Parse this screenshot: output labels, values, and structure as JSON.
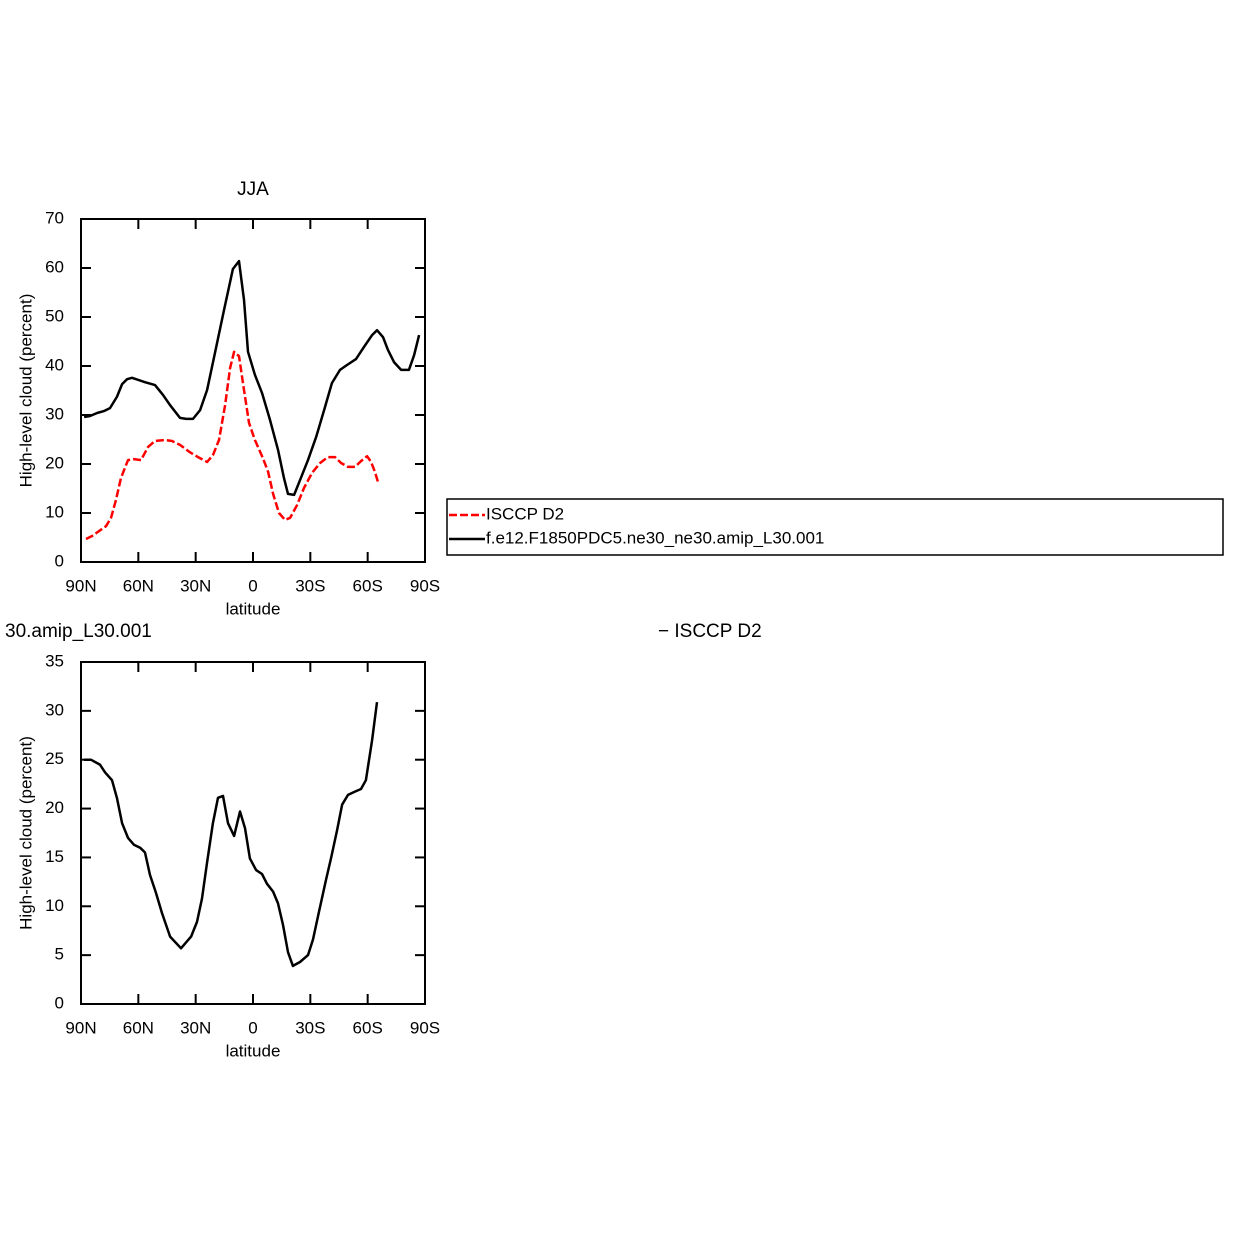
{
  "chart_data": [
    {
      "type": "line",
      "title": "JJA",
      "xlabel": "latitude",
      "ylabel": "High-level cloud (percent)",
      "xlim": [
        90,
        -90
      ],
      "xticks": [
        {
          "value": 90,
          "label": "90N"
        },
        {
          "value": 60,
          "label": "60N"
        },
        {
          "value": 30,
          "label": "30N"
        },
        0,
        {
          "value": -30,
          "label": "30S"
        },
        {
          "value": -60,
          "label": "60S"
        },
        {
          "value": -90,
          "label": "90S"
        }
      ],
      "ylim": [
        0,
        70
      ],
      "yticks": [
        0,
        10,
        20,
        30,
        40,
        50,
        60,
        70
      ],
      "legend": "right",
      "series": [
        {
          "name": "ISCCP D2",
          "color": "#ff0000",
          "dash": true,
          "x": [
            87.4,
            84.2,
            80.6,
            76.9,
            74.3,
            71.7,
            69.1,
            65.4,
            62.3,
            58.6,
            54.9,
            51.3,
            46,
            42.4,
            38.2,
            33,
            28.8,
            24,
            21,
            17.8,
            14.6,
            12,
            9.9,
            7.3,
            4.7,
            2.1,
            -1,
            -5.2,
            -7.9,
            -10.5,
            -13.6,
            -16.8,
            -19.4,
            -23,
            -26.7,
            -30.9,
            -35.1,
            -39.2,
            -42.9,
            -46.1,
            -49.7,
            -53.4,
            -56.5,
            -59.7,
            -61.8,
            -63.8,
            -65.4
          ],
          "values": [
            4.7,
            5.3,
            6.3,
            7.3,
            9,
            12.7,
            17.1,
            20.8,
            21,
            20.8,
            23.5,
            24.7,
            24.9,
            24.7,
            23.9,
            22.4,
            21.4,
            20.4,
            21.8,
            24.9,
            32,
            39.6,
            42.9,
            42,
            35.1,
            28.4,
            24.9,
            21.2,
            18.4,
            13.9,
            10,
            8.6,
            9,
            11.6,
            15.1,
            18.2,
            20.2,
            21.4,
            21.4,
            20.2,
            19.4,
            19.4,
            20.6,
            21.6,
            20.4,
            18.4,
            16.3
          ]
        },
        {
          "name": "f.e12.F1850PDC5.ne30_ne30.amip_L30.001",
          "color": "#000000",
          "dash": false,
          "x": [
            88.4,
            85.3,
            81.6,
            78,
            74.8,
            71.2,
            68.5,
            65.9,
            63.3,
            56.5,
            51.3,
            47.1,
            43.4,
            38.2,
            35,
            31.4,
            27.7,
            24,
            19.9,
            15.2,
            10.5,
            7.3,
            4.7,
            2.6,
            -1,
            -4.7,
            -8.9,
            -13.1,
            -16.2,
            -18.3,
            -21.5,
            -24.6,
            -28.8,
            -33,
            -37.2,
            -41.3,
            -45.5,
            -49.2,
            -53.9,
            -58.1,
            -62.3,
            -64.9,
            -68,
            -70.6,
            -73.8,
            -77.5,
            -81.6,
            -84.3,
            -86.9
          ],
          "values": [
            29.6,
            29.8,
            30.4,
            30.8,
            31.4,
            33.7,
            36.3,
            37.3,
            37.6,
            36.7,
            36.1,
            34.1,
            32,
            29.4,
            29.2,
            29.2,
            31,
            35.1,
            42.7,
            51.4,
            59.8,
            61.4,
            53.5,
            42.9,
            38.2,
            34.5,
            29,
            22.9,
            17.1,
            13.9,
            13.7,
            16.7,
            20.8,
            25.5,
            31,
            36.5,
            39.2,
            40.2,
            41.4,
            43.9,
            46.3,
            47.3,
            45.9,
            43.3,
            40.8,
            39.2,
            39.2,
            42.2,
            46.3
          ]
        }
      ]
    },
    {
      "type": "line",
      "title": "30.amip_L30.001",
      "title_right": "− ISCCP D2",
      "xlabel": "latitude",
      "ylabel": "High-level cloud (percent)",
      "xlim": [
        90,
        -90
      ],
      "xticks": [
        {
          "value": 90,
          "label": "90N"
        },
        {
          "value": 60,
          "label": "60N"
        },
        {
          "value": 30,
          "label": "30N"
        },
        0,
        {
          "value": -30,
          "label": "30S"
        },
        {
          "value": -60,
          "label": "60S"
        },
        {
          "value": -90,
          "label": "90S"
        }
      ],
      "ylim": [
        0,
        35
      ],
      "yticks": [
        0,
        5,
        10,
        15,
        20,
        25,
        30,
        35
      ],
      "series": [
        {
          "color": "#000000",
          "dash": false,
          "x": [
            88.4,
            84.8,
            80.1,
            77.4,
            73.8,
            71.2,
            68.5,
            65.4,
            62.3,
            59.1,
            56.5,
            53.9,
            50.8,
            47.6,
            43.4,
            37.7,
            32.4,
            29.3,
            26.7,
            24,
            21,
            18.3,
            15.7,
            13.1,
            9.9,
            6.8,
            4.2,
            1.6,
            -1.6,
            -4.7,
            -7.3,
            -10.5,
            -13.1,
            -15.7,
            -18.3,
            -20.9,
            -24.6,
            -28.8,
            -31.4,
            -34.5,
            -38.2,
            -40.8,
            -44,
            -46.6,
            -49.7,
            -52.9,
            -56.5,
            -59.1,
            -62.3,
            -64.9
          ],
          "values": [
            25,
            25,
            24.5,
            23.7,
            22.9,
            21.1,
            18.5,
            17,
            16.3,
            16,
            15.5,
            13.2,
            11.4,
            9.3,
            6.9,
            5.7,
            6.9,
            8.4,
            10.8,
            14.5,
            18.5,
            21.1,
            21.3,
            18.5,
            17.2,
            19.7,
            18,
            14.9,
            13.7,
            13.3,
            12.3,
            11.5,
            10.3,
            8.1,
            5.3,
            3.9,
            4.3,
            5,
            6.6,
            9.4,
            12.7,
            14.9,
            17.8,
            20.4,
            21.4,
            21.7,
            22,
            22.9,
            27,
            30.9
          ]
        }
      ]
    }
  ]
}
